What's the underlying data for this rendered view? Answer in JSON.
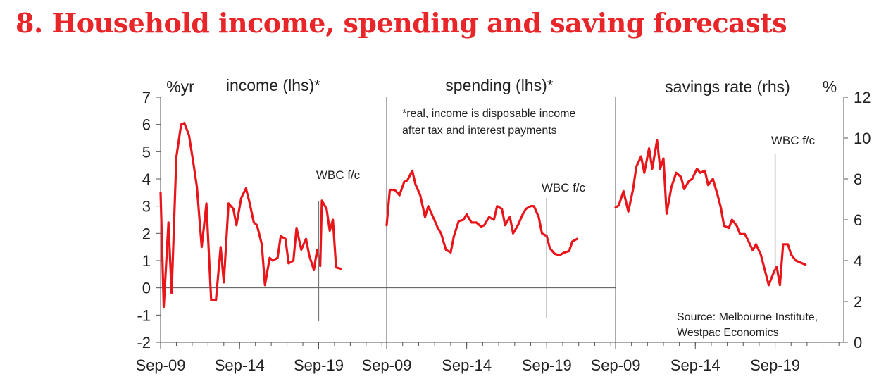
{
  "title": "8. Household income, spending and saving forecasts",
  "chart_data": {
    "type": "line",
    "left_axis": {
      "label": "%yr",
      "ylim": [
        -2,
        7
      ],
      "ticks": [
        "7",
        "6",
        "5",
        "4",
        "3",
        "2",
        "1",
        "0",
        "-1",
        "-2"
      ]
    },
    "right_axis": {
      "label": "%",
      "ylim": [
        0,
        12
      ],
      "ticks": [
        "12",
        "10",
        "8",
        "6",
        "4",
        "2",
        "0"
      ]
    },
    "x_ticks": [
      "Sep-09",
      "Sep-14",
      "Sep-19"
    ],
    "panels": [
      {
        "label": "income (lhs)*",
        "axis": "lhs",
        "forecast_label": "WBC f/c",
        "forecast_x": 2019.7,
        "points": [
          [
            2009.7,
            3.5
          ],
          [
            2009.9,
            -0.7
          ],
          [
            2010.2,
            2.4
          ],
          [
            2010.4,
            -0.2
          ],
          [
            2010.7,
            4.8
          ],
          [
            2011.0,
            6.0
          ],
          [
            2011.2,
            6.05
          ],
          [
            2011.5,
            5.6
          ],
          [
            2011.8,
            4.5
          ],
          [
            2012.0,
            3.7
          ],
          [
            2012.3,
            1.5
          ],
          [
            2012.6,
            3.1
          ],
          [
            2012.9,
            -0.45
          ],
          [
            2013.2,
            -0.45
          ],
          [
            2013.5,
            1.5
          ],
          [
            2013.7,
            0.2
          ],
          [
            2014.0,
            3.1
          ],
          [
            2014.3,
            2.9
          ],
          [
            2014.5,
            2.3
          ],
          [
            2014.8,
            3.3
          ],
          [
            2015.1,
            3.65
          ],
          [
            2015.3,
            3.2
          ],
          [
            2015.6,
            2.4
          ],
          [
            2015.8,
            2.3
          ],
          [
            2016.1,
            1.6
          ],
          [
            2016.3,
            0.1
          ],
          [
            2016.6,
            1.1
          ],
          [
            2016.8,
            1.0
          ],
          [
            2017.1,
            1.1
          ],
          [
            2017.3,
            1.9
          ],
          [
            2017.6,
            1.8
          ],
          [
            2017.8,
            0.9
          ],
          [
            2018.1,
            1.0
          ],
          [
            2018.3,
            2.2
          ],
          [
            2018.6,
            1.4
          ],
          [
            2018.9,
            1.8
          ],
          [
            2019.1,
            1.2
          ],
          [
            2019.4,
            0.65
          ],
          [
            2019.6,
            1.4
          ],
          [
            2019.8,
            0.8
          ],
          [
            2019.9,
            3.2
          ],
          [
            2020.2,
            2.9
          ],
          [
            2020.4,
            2.1
          ],
          [
            2020.6,
            2.5
          ],
          [
            2020.8,
            0.75
          ],
          [
            2021.1,
            0.7
          ]
        ]
      },
      {
        "label": "spending (lhs)*",
        "axis": "lhs",
        "forecast_label": "WBC f/c",
        "forecast_x": 2019.7,
        "points": [
          [
            2009.7,
            2.3
          ],
          [
            2009.9,
            3.6
          ],
          [
            2010.2,
            3.6
          ],
          [
            2010.5,
            3.4
          ],
          [
            2010.8,
            3.9
          ],
          [
            2011.0,
            3.95
          ],
          [
            2011.3,
            4.3
          ],
          [
            2011.5,
            3.8
          ],
          [
            2011.8,
            3.4
          ],
          [
            2012.1,
            2.6
          ],
          [
            2012.3,
            3.0
          ],
          [
            2012.6,
            2.6
          ],
          [
            2012.9,
            2.2
          ],
          [
            2013.1,
            2.0
          ],
          [
            2013.4,
            1.4
          ],
          [
            2013.7,
            1.3
          ],
          [
            2013.9,
            1.9
          ],
          [
            2014.2,
            2.45
          ],
          [
            2014.5,
            2.5
          ],
          [
            2014.7,
            2.7
          ],
          [
            2015.0,
            2.4
          ],
          [
            2015.3,
            2.4
          ],
          [
            2015.6,
            2.25
          ],
          [
            2015.8,
            2.3
          ],
          [
            2016.1,
            2.6
          ],
          [
            2016.4,
            2.5
          ],
          [
            2016.6,
            3.0
          ],
          [
            2016.9,
            2.9
          ],
          [
            2017.1,
            2.3
          ],
          [
            2017.4,
            2.6
          ],
          [
            2017.6,
            2.0
          ],
          [
            2017.9,
            2.3
          ],
          [
            2018.2,
            2.7
          ],
          [
            2018.4,
            2.9
          ],
          [
            2018.7,
            3.0
          ],
          [
            2018.9,
            3.0
          ],
          [
            2019.2,
            2.6
          ],
          [
            2019.4,
            2.0
          ],
          [
            2019.7,
            1.9
          ],
          [
            2019.9,
            1.45
          ],
          [
            2020.2,
            1.25
          ],
          [
            2020.5,
            1.2
          ],
          [
            2020.8,
            1.3
          ],
          [
            2021.1,
            1.35
          ],
          [
            2021.3,
            1.7
          ],
          [
            2021.6,
            1.8
          ]
        ]
      },
      {
        "label": "savings rate (rhs)",
        "axis": "rhs",
        "forecast_label": "WBC f/c",
        "forecast_x": 2019.7,
        "points": [
          [
            2009.7,
            6.6
          ],
          [
            2009.9,
            6.7
          ],
          [
            2010.2,
            7.4
          ],
          [
            2010.5,
            6.4
          ],
          [
            2010.8,
            7.5
          ],
          [
            2011.0,
            8.6
          ],
          [
            2011.3,
            9.1
          ],
          [
            2011.5,
            8.3
          ],
          [
            2011.8,
            9.5
          ],
          [
            2012.0,
            8.5
          ],
          [
            2012.3,
            9.9
          ],
          [
            2012.5,
            8.5
          ],
          [
            2012.7,
            9.0
          ],
          [
            2012.9,
            6.3
          ],
          [
            2013.2,
            7.6
          ],
          [
            2013.5,
            8.3
          ],
          [
            2013.8,
            8.1
          ],
          [
            2014.0,
            7.5
          ],
          [
            2014.3,
            7.9
          ],
          [
            2014.5,
            8.0
          ],
          [
            2014.8,
            8.5
          ],
          [
            2015.0,
            8.3
          ],
          [
            2015.3,
            8.4
          ],
          [
            2015.5,
            7.7
          ],
          [
            2015.8,
            8.0
          ],
          [
            2016.1,
            7.2
          ],
          [
            2016.3,
            6.6
          ],
          [
            2016.5,
            5.7
          ],
          [
            2016.8,
            5.6
          ],
          [
            2017.0,
            6.0
          ],
          [
            2017.3,
            5.7
          ],
          [
            2017.5,
            5.3
          ],
          [
            2017.8,
            5.3
          ],
          [
            2018.0,
            5.0
          ],
          [
            2018.3,
            4.5
          ],
          [
            2018.5,
            4.8
          ],
          [
            2018.8,
            4.3
          ],
          [
            2019.0,
            3.7
          ],
          [
            2019.3,
            2.8
          ],
          [
            2019.6,
            3.4
          ],
          [
            2019.8,
            3.7
          ],
          [
            2020.0,
            2.8
          ],
          [
            2020.2,
            4.8
          ],
          [
            2020.5,
            4.8
          ],
          [
            2020.7,
            4.3
          ],
          [
            2021.0,
            4.0
          ],
          [
            2021.3,
            3.9
          ],
          [
            2021.6,
            3.8
          ]
        ]
      }
    ],
    "note": [
      "*real, income is disposable income",
      "after tax and interest payments"
    ],
    "source": [
      "Source: Melbourne Institute,",
      "Westpac Economics"
    ],
    "grid": false,
    "line_color": "#e8161b",
    "title_color": "#e8262a"
  }
}
